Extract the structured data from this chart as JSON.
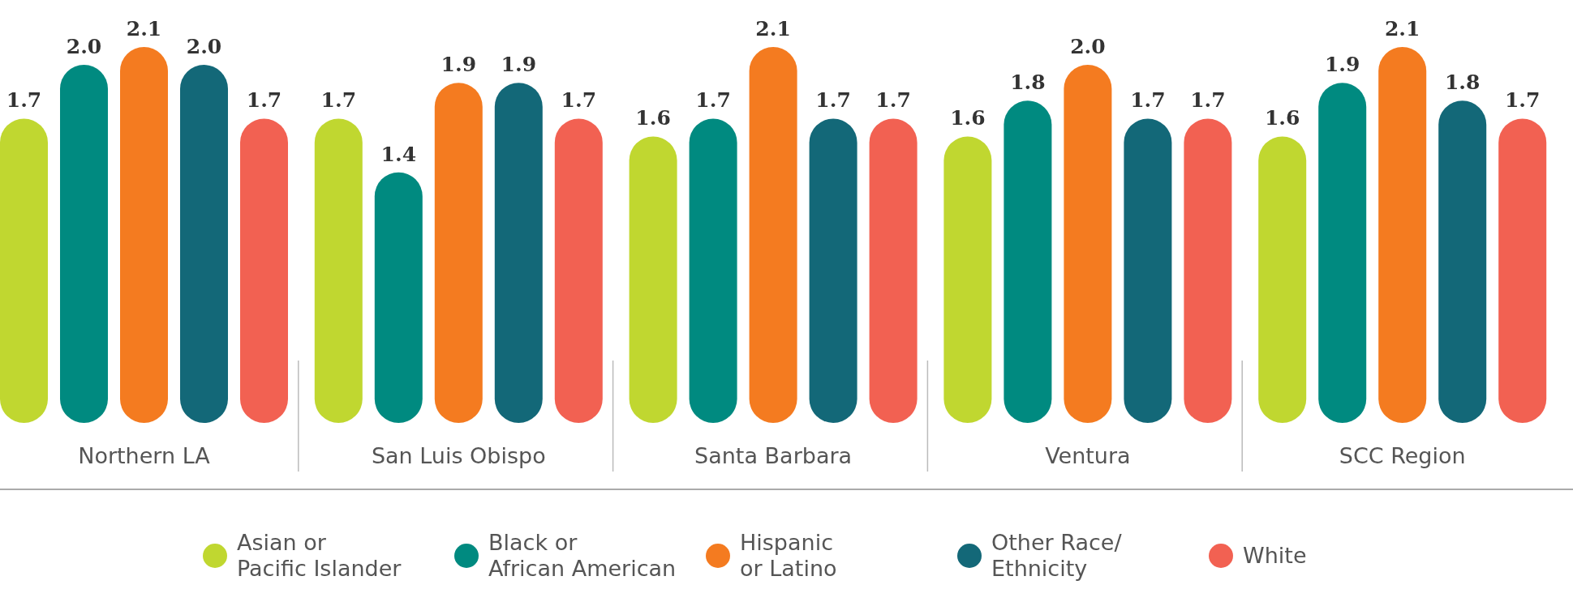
{
  "chart_data": {
    "type": "bar",
    "categories": [
      "Northern LA",
      "San Luis Obispo",
      "Santa Barbara",
      "Ventura",
      "SCC Region"
    ],
    "series": [
      {
        "name": "Asian or Pacific Islander",
        "color": "#c0d730",
        "values": [
          1.7,
          1.7,
          1.6,
          1.6,
          1.6
        ],
        "value_labels": [
          "1.7",
          "1.7",
          "1.6",
          "1.6",
          "1.6"
        ]
      },
      {
        "name": "Black or African American",
        "color": "#008a80",
        "values": [
          2.0,
          1.4,
          1.7,
          1.8,
          1.9
        ],
        "value_labels": [
          "2.0",
          "1.4",
          "1.7",
          "1.8",
          "1.9"
        ]
      },
      {
        "name": "Hispanic or Latino",
        "color": "#f47b20",
        "values": [
          2.1,
          1.9,
          2.1,
          2.0,
          2.1
        ],
        "value_labels": [
          "2.1",
          "1.9",
          "2.1",
          "2.0",
          "2.1"
        ]
      },
      {
        "name": "Other Race/ Ethnicity",
        "color": "#136878",
        "values": [
          2.0,
          1.9,
          1.7,
          1.7,
          1.8
        ],
        "value_labels": [
          "2.0",
          "1.9",
          "1.7",
          "1.7",
          "1.8"
        ]
      },
      {
        "name": "White",
        "color": "#f26152",
        "values": [
          1.7,
          1.7,
          1.7,
          1.7,
          1.7
        ],
        "value_labels": [
          "1.7",
          "1.7",
          "1.7",
          "1.7",
          "1.7"
        ]
      }
    ],
    "legend": "bottom"
  }
}
